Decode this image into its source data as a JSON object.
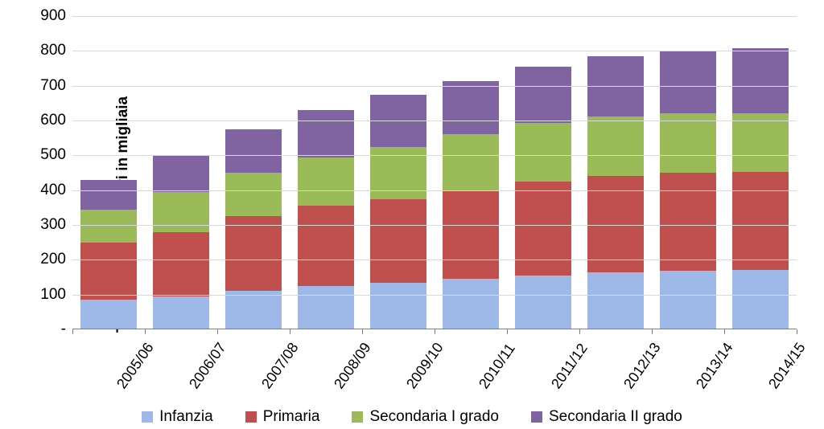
{
  "chart": {
    "type": "stacked-bar",
    "y_axis_title": "Totale alunni stranieri in migliaia",
    "ylim": [
      0,
      900
    ],
    "ytick_step": 100,
    "y_ticks": [
      0,
      100,
      200,
      300,
      400,
      500,
      600,
      700,
      800,
      900
    ],
    "y_zero_label": "-",
    "background_color": "#ffffff",
    "grid_color": "#d9d9d9",
    "axis_color": "#808080",
    "bar_width_ratio": 0.78,
    "title_fontsize": 19,
    "tick_fontsize": 19,
    "x_label_rotation_deg": -55,
    "categories": [
      "2005/06",
      "2006/07",
      "2007/08",
      "2008/09",
      "2009/10",
      "2010/11",
      "2011/12",
      "2012/13",
      "2013/14",
      "2014/15"
    ],
    "series": [
      {
        "name": "Infanzia",
        "color": "#9eb8e8",
        "values": [
          85,
          95,
          110,
          125,
          135,
          145,
          155,
          163,
          168,
          170
        ]
      },
      {
        "name": "Primaria",
        "color": "#c0504d",
        "values": [
          165,
          185,
          215,
          230,
          240,
          255,
          270,
          277,
          282,
          283
        ]
      },
      {
        "name": "Secondaria I grado",
        "color": "#9bbb59",
        "values": [
          95,
          115,
          125,
          140,
          150,
          160,
          168,
          172,
          170,
          168
        ]
      },
      {
        "name": "Secondaria II grado",
        "color": "#8064a2",
        "values": [
          85,
          105,
          125,
          135,
          148,
          153,
          162,
          173,
          182,
          187
        ]
      }
    ],
    "legend_items": [
      {
        "name": "Infanzia",
        "color": "#9eb8e8"
      },
      {
        "name": "Primaria",
        "color": "#c0504d"
      },
      {
        "name": "Secondaria I grado",
        "color": "#9bbb59"
      },
      {
        "name": "Secondaria II grado",
        "color": "#8064a2"
      }
    ]
  }
}
